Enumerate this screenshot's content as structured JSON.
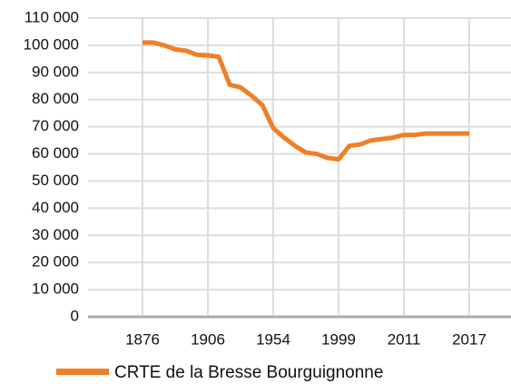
{
  "chart_data": {
    "type": "line",
    "categories": [
      "1876",
      null,
      null,
      null,
      null,
      null,
      "1906",
      null,
      null,
      null,
      null,
      null,
      "1954",
      null,
      null,
      null,
      null,
      null,
      "1999",
      null,
      null,
      null,
      null,
      null,
      "2011",
      null,
      null,
      null,
      null,
      null,
      "2017"
    ],
    "series": [
      {
        "name": "CRTE de la Bresse Bourguignonne",
        "color": "#f07f26",
        "values": [
          101000,
          101000,
          100000,
          98500,
          98000,
          96500,
          96300,
          95800,
          85500,
          84500,
          81500,
          78000,
          69500,
          66000,
          63000,
          60500,
          60000,
          58500,
          58000,
          63000,
          63500,
          65000,
          65500,
          66000,
          67000,
          67000,
          67500,
          67500,
          67500,
          67500,
          67500
        ]
      }
    ],
    "ylim": [
      0,
      110000
    ],
    "yticks": [
      {
        "value": 0,
        "label": "0"
      },
      {
        "value": 10000,
        "label": "10 000"
      },
      {
        "value": 20000,
        "label": "20 000"
      },
      {
        "value": 30000,
        "label": "30 000"
      },
      {
        "value": 40000,
        "label": "40 000"
      },
      {
        "value": 50000,
        "label": "50 000"
      },
      {
        "value": 60000,
        "label": "60 000"
      },
      {
        "value": 70000,
        "label": "70 000"
      },
      {
        "value": 80000,
        "label": "80 000"
      },
      {
        "value": 90000,
        "label": "90 000"
      },
      {
        "value": 100000,
        "label": "100 000"
      },
      {
        "value": 110000,
        "label": "110 000"
      }
    ],
    "grid": true
  }
}
